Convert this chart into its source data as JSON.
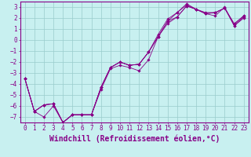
{
  "xlabel": "Windchill (Refroidissement éolien,°C)",
  "bg_color": "#c8f0f0",
  "line_color": "#880088",
  "grid_color": "#99cccc",
  "xlim": [
    -0.5,
    23.5
  ],
  "ylim": [
    -7.5,
    3.5
  ],
  "xticks": [
    0,
    1,
    2,
    3,
    4,
    5,
    6,
    7,
    8,
    9,
    10,
    11,
    12,
    13,
    14,
    15,
    16,
    17,
    18,
    19,
    20,
    21,
    22,
    23
  ],
  "yticks": [
    -7,
    -6,
    -5,
    -4,
    -3,
    -2,
    -1,
    0,
    1,
    2,
    3
  ],
  "series": [
    {
      "x": [
        0,
        1,
        2,
        3,
        4,
        5,
        6,
        7,
        8,
        9,
        10,
        11,
        12,
        13,
        14,
        15,
        16,
        17,
        18,
        19,
        20,
        21,
        22,
        23
      ],
      "y": [
        -3.5,
        -6.5,
        -7.0,
        -6.0,
        -7.5,
        -6.8,
        -6.8,
        -6.8,
        -4.5,
        -2.6,
        -2.3,
        -2.5,
        -2.8,
        -1.8,
        0.3,
        1.5,
        2.1,
        3.1,
        2.8,
        2.4,
        2.2,
        3.0,
        1.3,
        2.0
      ]
    },
    {
      "x": [
        0,
        1,
        2,
        3,
        4,
        5,
        6,
        7,
        8,
        9,
        10,
        11,
        12,
        13,
        14,
        15,
        16,
        17,
        18,
        19,
        20,
        21,
        22,
        23
      ],
      "y": [
        -3.5,
        -6.5,
        -5.9,
        -5.8,
        -7.5,
        -6.8,
        -6.8,
        -6.8,
        -4.3,
        -2.5,
        -2.0,
        -2.3,
        -2.2,
        -1.1,
        0.3,
        1.7,
        2.1,
        3.1,
        2.8,
        2.4,
        2.5,
        2.9,
        1.3,
        2.1
      ]
    },
    {
      "x": [
        0,
        1,
        2,
        3,
        4,
        5,
        6,
        7,
        8,
        9,
        10,
        11,
        12,
        13,
        14,
        15,
        16,
        17,
        18,
        19,
        20,
        21,
        22,
        23
      ],
      "y": [
        -3.5,
        -6.5,
        -5.9,
        -5.8,
        -7.5,
        -6.8,
        -6.8,
        -6.8,
        -4.3,
        -2.5,
        -2.0,
        -2.3,
        -2.2,
        -1.1,
        0.3,
        1.7,
        2.5,
        3.2,
        2.8,
        2.4,
        2.5,
        2.9,
        1.4,
        2.2
      ]
    },
    {
      "x": [
        0,
        1,
        2,
        3,
        4,
        5,
        6,
        7,
        8,
        9,
        10,
        11,
        12,
        13,
        14,
        15,
        16,
        17,
        18,
        19,
        20,
        21,
        22,
        23
      ],
      "y": [
        -3.5,
        -6.5,
        -5.9,
        -5.8,
        -7.5,
        -6.8,
        -6.8,
        -6.8,
        -4.3,
        -2.5,
        -2.0,
        -2.3,
        -2.2,
        -1.1,
        0.5,
        1.9,
        2.5,
        3.3,
        2.8,
        2.5,
        2.5,
        2.9,
        1.5,
        2.2
      ]
    }
  ],
  "tick_fontsize": 5.5,
  "label_fontsize": 7.0
}
